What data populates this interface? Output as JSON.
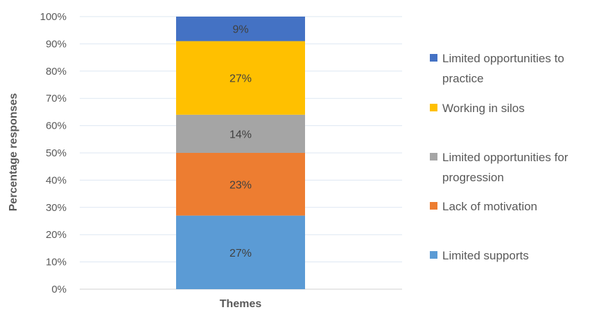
{
  "chart_data": {
    "type": "bar",
    "stacked": true,
    "categories": [
      "Themes"
    ],
    "xlabel": "Themes",
    "ylabel": "Percentage responses",
    "ylim": [
      0,
      100
    ],
    "yticks": [
      "0%",
      "10%",
      "20%",
      "30%",
      "40%",
      "50%",
      "60%",
      "70%",
      "80%",
      "90%",
      "100%"
    ],
    "grid": true,
    "legend_position": "right",
    "series": [
      {
        "name": "Limited supports",
        "values": [
          27
        ],
        "label": "27%",
        "color": "#5B9BD5"
      },
      {
        "name": "Lack of motivation",
        "values": [
          23
        ],
        "label": "23%",
        "color": "#ED7D31"
      },
      {
        "name": "Limited opportunities for progression",
        "values": [
          14
        ],
        "label": "14%",
        "color": "#A5A5A5"
      },
      {
        "name": "Working in silos",
        "values": [
          27
        ],
        "label": "27%",
        "color": "#FFC000"
      },
      {
        "name": "Limited opportunities to practice",
        "values": [
          9
        ],
        "label": "9%",
        "color": "#4472C4"
      }
    ],
    "legend": [
      {
        "lines": [
          "Limited opportunities to",
          "practice"
        ],
        "color": "#4472C4"
      },
      {
        "lines": [
          "Working in silos"
        ],
        "color": "#FFC000"
      },
      {
        "lines": [
          "Limited opportunities for",
          "progression"
        ],
        "color": "#A5A5A5"
      },
      {
        "lines": [
          "Lack of motivation"
        ],
        "color": "#ED7D31"
      },
      {
        "lines": [
          "Limited supports"
        ],
        "color": "#5B9BD5"
      }
    ]
  }
}
